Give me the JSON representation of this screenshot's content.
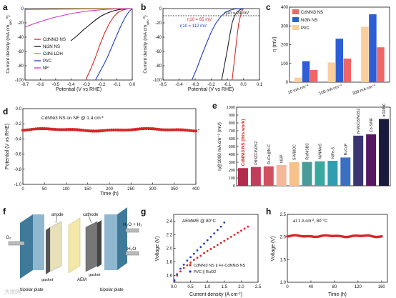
{
  "chart_data": [
    {
      "panel": "a",
      "type": "line",
      "xlabel": "Potential (V vs RHE)",
      "ylabel": "Current density (mA cm",
      "ylabel_sub": "geo",
      "ylabel_sup": "-2",
      "ylabel_end": ")",
      "xlim": [
        -0.7,
        0.0
      ],
      "ylim": [
        -100,
        0
      ],
      "xticks": [
        "-0.7",
        "-0.6",
        "-0.5",
        "-0.4",
        "-0.3",
        "-0.2",
        "-0.1",
        "0.0"
      ],
      "yticks": [
        "-100",
        "-80",
        "-60",
        "-40",
        "-20",
        "0"
      ],
      "legend": [
        "CdNNi3 NS",
        "Ni3N NS",
        "CdNi LDH",
        "Pt/C",
        "NF"
      ],
      "series": [
        {
          "name": "CdNNi3 NS",
          "color": "#d62728",
          "x": [
            -0.3,
            -0.27,
            -0.24,
            -0.21,
            -0.18,
            -0.15,
            -0.12,
            -0.09,
            -0.06,
            -0.03,
            0.0
          ],
          "y": [
            -98,
            -84,
            -68,
            -50,
            -34,
            -21,
            -11,
            -5,
            -2,
            -0.5,
            0
          ]
        },
        {
          "name": "Ni3N NS",
          "color": "#111111",
          "x": [
            -0.4,
            -0.36,
            -0.32,
            -0.28,
            -0.24,
            -0.2,
            -0.16,
            -0.12,
            -0.08,
            -0.04,
            0.0
          ],
          "y": [
            -45,
            -38,
            -30,
            -23,
            -16,
            -10,
            -6,
            -3,
            -1.2,
            -0.3,
            0
          ]
        },
        {
          "name": "CdNi LDH",
          "color": "#d98c00",
          "x": [
            -0.7,
            -0.5,
            -0.3,
            -0.1,
            0.0
          ],
          "y": [
            -1.5,
            -1,
            -0.6,
            -0.2,
            0
          ]
        },
        {
          "name": "Pt/C",
          "color": "#1f3fbf",
          "x": [
            -0.24,
            -0.22,
            -0.2,
            -0.18,
            -0.16,
            -0.14,
            -0.12,
            -0.1,
            -0.08,
            -0.06,
            -0.04,
            -0.02,
            0.0
          ],
          "y": [
            -100,
            -92,
            -84,
            -76,
            -67,
            -57,
            -47,
            -37,
            -27,
            -18,
            -10,
            -4,
            0
          ]
        },
        {
          "name": "NF",
          "color": "#cc33cc",
          "x": [
            -0.7,
            -0.64,
            -0.58,
            -0.52,
            -0.46,
            -0.4,
            -0.34,
            -0.28,
            -0.22,
            -0.16,
            -0.1,
            0.0
          ],
          "y": [
            -26,
            -21,
            -17,
            -13,
            -10,
            -7,
            -5,
            -3.2,
            -2,
            -1,
            -0.4,
            0
          ]
        }
      ]
    },
    {
      "panel": "b",
      "type": "line",
      "xlabel": "Potential (V vs RHE)",
      "ylabel": "Current density (mA cm",
      "ylabel_sub": "geo",
      "ylabel_sup": "-2",
      "ylabel_end": ")",
      "xlim": [
        -0.5,
        0.1
      ],
      "ylim": [
        -100,
        0
      ],
      "xticks": [
        "-0.5",
        "-0.4",
        "-0.3",
        "-0.2",
        "-0.1",
        "0.0",
        "0.1"
      ],
      "yticks": [
        "-100",
        "-80",
        "-60",
        "-40",
        "-20",
        "0"
      ],
      "ref_line": -10,
      "annotations": [
        "η10 = 24 mV",
        "η10 = 65 mV",
        "η10 = 112 mV"
      ],
      "series": [
        {
          "name": "Pt/C",
          "color": "#d62728",
          "x": [
            -0.07,
            -0.06,
            -0.05,
            -0.04,
            -0.03,
            -0.02,
            -0.01,
            0.0
          ],
          "y": [
            -100,
            -80,
            -60,
            -40,
            -22,
            -12,
            -4,
            0
          ]
        },
        {
          "name": "CdNNi3 NS",
          "color": "#222222",
          "x": [
            -0.135,
            -0.12,
            -0.1,
            -0.085,
            -0.07,
            -0.055,
            -0.04,
            -0.02,
            0.0
          ],
          "y": [
            -100,
            -82,
            -58,
            -38,
            -20,
            -10,
            -5,
            -1.5,
            0
          ]
        },
        {
          "name": "Ni3N NS",
          "color": "#1f3fbf",
          "x": [
            -0.32,
            -0.29,
            -0.26,
            -0.23,
            -0.2,
            -0.17,
            -0.14,
            -0.11,
            -0.08,
            -0.05,
            0.0
          ],
          "y": [
            -100,
            -84,
            -66,
            -49,
            -33,
            -20,
            -11,
            -5,
            -2,
            -0.5,
            0
          ]
        }
      ]
    },
    {
      "panel": "c",
      "type": "bar",
      "ylabel": "η (mV)",
      "ylim": [
        0,
        400
      ],
      "yticks": [
        "0",
        "100",
        "200",
        "300",
        "400"
      ],
      "categories": [
        "10 mA cm⁻²",
        "100 mA cm⁻²",
        "300 mA cm⁻²"
      ],
      "legend": [
        "CdNNi3 NS",
        "Ni3N NS",
        "Pt/C"
      ],
      "series": [
        {
          "name": "Pt/C",
          "color": "#f9cf9d",
          "values": [
            24,
            105,
            295
          ]
        },
        {
          "name": "Ni3N NS",
          "color": "#2c5fd6",
          "values": [
            112,
            232,
            362
          ]
        },
        {
          "name": "CdNNi3 NS",
          "color": "#f06565",
          "values": [
            65,
            126,
            186
          ]
        }
      ]
    },
    {
      "panel": "d",
      "type": "scatter",
      "title": "CdNNi3 NS on NF @ 1.4 cm",
      "title_sup": "-2",
      "xlabel": "Time (h)",
      "ylabel": "Potential (V vs RHE)",
      "xlim": [
        0,
        400
      ],
      "ylim": [
        -1.0,
        0.0
      ],
      "xticks": [
        "0",
        "50",
        "100",
        "150",
        "200",
        "250",
        "300",
        "350",
        "400"
      ],
      "yticks": [
        "-1.0",
        "-0.8",
        "-0.6",
        "-0.4",
        "-0.2",
        "0.0"
      ],
      "series": [
        {
          "name": "CdNNi3 NS",
          "color": "#d62728",
          "x": [
            0,
            20,
            40,
            60,
            80,
            100,
            120,
            140,
            160,
            180,
            200,
            220,
            240,
            260,
            280,
            300,
            320,
            340,
            360,
            380,
            400
          ],
          "y": [
            -0.28,
            -0.27,
            -0.28,
            -0.27,
            -0.28,
            -0.29,
            -0.29,
            -0.3,
            -0.29,
            -0.28,
            -0.29,
            -0.28,
            -0.27,
            -0.27,
            -0.27,
            -0.27,
            -0.28,
            -0.28,
            -0.29,
            -0.29,
            -0.29
          ]
        }
      ]
    },
    {
      "panel": "e",
      "type": "bar",
      "ylabel": "η@1000 mA cm⁻² (mV)",
      "ylim": [
        0,
        1000
      ],
      "yticks": [
        "0",
        "100",
        "200",
        "300",
        "400",
        "500",
        "600",
        "700",
        "800",
        "900",
        "1000"
      ],
      "categories": [
        "CdNNi3 NS (this work)",
        "PBSCF/Ni3S2",
        "RuCo@N-C",
        "Ni3P",
        "S-MBIDC",
        "Ru/NiSBC",
        "Ni/NiMoS",
        "NiFe-S",
        "RuCoP",
        "N-MoO3/Ni3S2",
        "Co-S/NF",
        "IrO2/NC"
      ],
      "values": [
        225,
        240,
        248,
        265,
        300,
        303,
        312,
        318,
        360,
        638,
        655,
        850
      ],
      "colors": [
        "#b22a4e",
        "#c23c5b",
        "#d05060",
        "#f5b89b",
        "#f7c28a",
        "#4b9b9b",
        "#3aa89e",
        "#2f9eb0",
        "#3b6fc2",
        "#3a3470",
        "#561860",
        "#1a1a3a"
      ]
    },
    {
      "panel": "f",
      "type": "diagram",
      "labels": [
        "anode",
        "cathode",
        "gasket",
        "gasket",
        "AEM",
        "bipolar plate",
        "bipolar plate",
        "O₂",
        "H₂O + H₂",
        "H₂O"
      ]
    },
    {
      "panel": "g",
      "type": "scatter",
      "title": "AEMWE @ 80°C",
      "xlabel": "Current density (A cm",
      "xlabel_sup": "-2",
      "xlabel_end": ")",
      "ylabel": "Voltage (V)",
      "xlim": [
        0,
        2.5
      ],
      "ylim": [
        1.5,
        2.5
      ],
      "xticks": [
        "0.0",
        "0.5",
        "1.0",
        "1.5",
        "2.0",
        "2.5"
      ],
      "yticks": [
        "1.6",
        "1.8",
        "2.0",
        "2.2",
        "2.4"
      ],
      "legend": [
        "CdNNi3 NS || Fe-CdNNi3 NS",
        "Pt/C || RuO2"
      ],
      "series": [
        {
          "name": "CdNNi3 NS || Fe-CdNNi3 NS",
          "color": "#d62728",
          "x": [
            0.02,
            0.1,
            0.2,
            0.3,
            0.4,
            0.5,
            0.6,
            0.7,
            0.8,
            0.9,
            1.0,
            1.1,
            1.2,
            1.3,
            1.4,
            1.5,
            1.6,
            1.7,
            1.8,
            1.9,
            2.0,
            2.1,
            2.2
          ],
          "y": [
            1.52,
            1.6,
            1.66,
            1.71,
            1.75,
            1.79,
            1.83,
            1.86,
            1.89,
            1.93,
            1.96,
            1.99,
            2.02,
            2.05,
            2.08,
            2.11,
            2.14,
            2.17,
            2.2,
            2.23,
            2.26,
            2.29,
            2.32
          ]
        },
        {
          "name": "Pt/C || RuO2",
          "color": "#1f3fbf",
          "x": [
            0.02,
            0.1,
            0.2,
            0.3,
            0.4,
            0.5,
            0.6,
            0.7,
            0.8,
            0.9,
            1.0,
            1.1,
            1.2,
            1.3,
            1.4,
            1.5
          ],
          "y": [
            1.53,
            1.62,
            1.7,
            1.76,
            1.82,
            1.87,
            1.92,
            1.97,
            2.02,
            2.07,
            2.12,
            2.17,
            2.22,
            2.27,
            2.32,
            2.38
          ]
        }
      ]
    },
    {
      "panel": "h",
      "type": "scatter",
      "title": "at 1 A cm",
      "title_sup": "-2",
      "title_end": ", 80 °C",
      "xlabel": "Time (h)",
      "ylabel": "Voltage (V)",
      "xlim": [
        0,
        170
      ],
      "ylim": [
        1.0,
        2.5
      ],
      "xticks": [
        "0",
        "40",
        "80",
        "120",
        "160"
      ],
      "yticks": [
        "1.0",
        "1.5",
        "2.0",
        "2.5"
      ],
      "series": [
        {
          "name": "CdNNi3 NS || Fe-CdNNi3 NS",
          "color": "#d62728",
          "x": [
            0,
            8,
            16,
            24,
            32,
            40,
            48,
            56,
            64,
            72,
            80,
            88,
            96,
            104,
            112,
            120,
            128,
            136,
            144,
            152,
            160
          ],
          "y": [
            2.0,
            2.02,
            2.01,
            2.02,
            2.01,
            2.01,
            2.02,
            2.01,
            2.02,
            2.01,
            2.02,
            2.03,
            2.02,
            2.01,
            2.02,
            2.02,
            2.03,
            2.02,
            2.01,
            2.03,
            2.02
          ]
        }
      ]
    }
  ],
  "panel_letters": [
    "a",
    "b",
    "c",
    "d",
    "e",
    "f",
    "g",
    "h"
  ],
  "watermark": "大图网",
  "colors": {
    "accent_red": "#d62728",
    "accent_blue": "#1f3fbf"
  }
}
